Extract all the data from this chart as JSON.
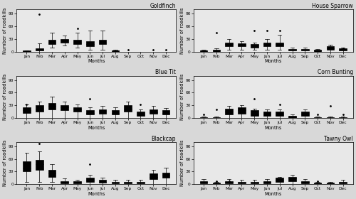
{
  "species": [
    "Goldfinch",
    "House Sparrow",
    "Blue Tit",
    "Corn Bunting",
    "Blackcap",
    "Tawny Owl"
  ],
  "months": [
    "Jan",
    "Feb",
    "Mar",
    "Apr",
    "May",
    "Jun",
    "Jul",
    "Aug",
    "Sep",
    "Oct",
    "Nov",
    "Dec"
  ],
  "background_color": "#e8e8e8",
  "title_fontsize": 5.5,
  "label_fontsize": 4.8,
  "tick_fontsize": 4.2,
  "yticks": [
    0,
    30,
    60,
    90
  ],
  "ylim": [
    0,
    100
  ],
  "goldfinch": {
    "whislo": [
      0,
      0,
      10,
      15,
      10,
      5,
      5,
      0,
      0,
      0,
      0,
      0
    ],
    "q1": [
      0,
      2,
      18,
      22,
      18,
      12,
      18,
      0,
      0,
      0,
      0,
      0
    ],
    "med": [
      1,
      5,
      22,
      26,
      22,
      18,
      22,
      2,
      0,
      0,
      0,
      0
    ],
    "q3": [
      2,
      8,
      28,
      30,
      28,
      25,
      28,
      3,
      0,
      0,
      0,
      0
    ],
    "whishi": [
      3,
      20,
      45,
      38,
      45,
      50,
      50,
      5,
      0,
      0,
      0,
      0
    ],
    "fliers_hi": [
      0,
      88,
      0,
      0,
      55,
      0,
      0,
      0,
      5,
      0,
      5,
      5
    ],
    "fliers_lo": []
  },
  "house_sparrow": {
    "whislo": [
      0,
      0,
      5,
      5,
      5,
      5,
      5,
      0,
      0,
      0,
      0,
      0
    ],
    "q1": [
      0,
      0,
      12,
      12,
      10,
      12,
      12,
      2,
      2,
      0,
      5,
      3
    ],
    "med": [
      2,
      2,
      18,
      16,
      14,
      18,
      18,
      4,
      4,
      2,
      8,
      5
    ],
    "q3": [
      3,
      4,
      22,
      20,
      18,
      22,
      22,
      6,
      6,
      4,
      12,
      7
    ],
    "whishi": [
      5,
      8,
      30,
      25,
      22,
      30,
      40,
      9,
      9,
      6,
      16,
      10
    ],
    "fliers_hi": [
      0,
      45,
      0,
      0,
      50,
      50,
      50,
      0,
      0,
      0,
      8,
      8
    ],
    "fliers_lo": []
  },
  "blue_tit": {
    "whislo": [
      0,
      0,
      0,
      0,
      0,
      0,
      0,
      0,
      0,
      0,
      0,
      0
    ],
    "q1": [
      12,
      15,
      20,
      18,
      15,
      8,
      10,
      8,
      15,
      5,
      10,
      8
    ],
    "med": [
      18,
      22,
      28,
      25,
      20,
      12,
      15,
      12,
      22,
      10,
      14,
      12
    ],
    "q3": [
      25,
      30,
      35,
      30,
      25,
      18,
      20,
      18,
      30,
      15,
      20,
      18
    ],
    "whishi": [
      32,
      38,
      50,
      38,
      32,
      25,
      28,
      25,
      38,
      20,
      28,
      24
    ],
    "fliers_hi": [
      32,
      0,
      0,
      0,
      0,
      45,
      0,
      0,
      0,
      32,
      0,
      0
    ],
    "fliers_lo": [
      5,
      5,
      5,
      5,
      5,
      0,
      0,
      0,
      5,
      5,
      5,
      5
    ]
  },
  "corn_bunting": {
    "whislo": [
      0,
      0,
      0,
      0,
      0,
      0,
      0,
      0,
      0,
      0,
      0,
      0
    ],
    "q1": [
      0,
      0,
      8,
      10,
      5,
      5,
      5,
      0,
      5,
      0,
      0,
      0
    ],
    "med": [
      0,
      0,
      15,
      18,
      10,
      10,
      10,
      2,
      10,
      0,
      0,
      0
    ],
    "q3": [
      2,
      2,
      22,
      26,
      18,
      15,
      15,
      5,
      15,
      2,
      2,
      2
    ],
    "whishi": [
      3,
      3,
      28,
      30,
      22,
      20,
      20,
      8,
      20,
      3,
      3,
      3
    ],
    "fliers_hi": [
      8,
      20,
      0,
      0,
      45,
      0,
      32,
      0,
      0,
      8,
      28,
      8
    ],
    "fliers_lo": []
  },
  "blackcap": {
    "whislo": [
      5,
      5,
      5,
      0,
      0,
      0,
      0,
      0,
      0,
      0,
      0,
      0
    ],
    "q1": [
      30,
      35,
      18,
      2,
      2,
      5,
      3,
      2,
      2,
      2,
      12,
      15
    ],
    "med": [
      38,
      48,
      25,
      5,
      4,
      10,
      6,
      4,
      4,
      4,
      18,
      22
    ],
    "q3": [
      55,
      58,
      35,
      8,
      7,
      15,
      10,
      6,
      6,
      6,
      25,
      28
    ],
    "whishi": [
      75,
      78,
      48,
      14,
      10,
      22,
      16,
      10,
      10,
      10,
      35,
      40
    ],
    "fliers_hi": [
      0,
      96,
      0,
      0,
      0,
      48,
      0,
      0,
      0,
      0,
      0,
      0
    ],
    "fliers_lo": []
  },
  "tawny_owl": {
    "whislo": [
      0,
      0,
      0,
      0,
      0,
      0,
      0,
      0,
      0,
      0,
      0,
      0
    ],
    "q1": [
      2,
      0,
      2,
      2,
      2,
      2,
      5,
      8,
      2,
      0,
      0,
      2
    ],
    "med": [
      5,
      2,
      5,
      4,
      4,
      5,
      10,
      14,
      5,
      2,
      2,
      4
    ],
    "q3": [
      8,
      4,
      8,
      6,
      6,
      8,
      15,
      18,
      8,
      4,
      4,
      6
    ],
    "whishi": [
      12,
      6,
      12,
      10,
      10,
      12,
      18,
      22,
      12,
      6,
      6,
      10
    ],
    "fliers_hi": [
      0,
      8,
      8,
      0,
      0,
      0,
      0,
      0,
      0,
      8,
      0,
      0
    ],
    "fliers_lo": []
  }
}
